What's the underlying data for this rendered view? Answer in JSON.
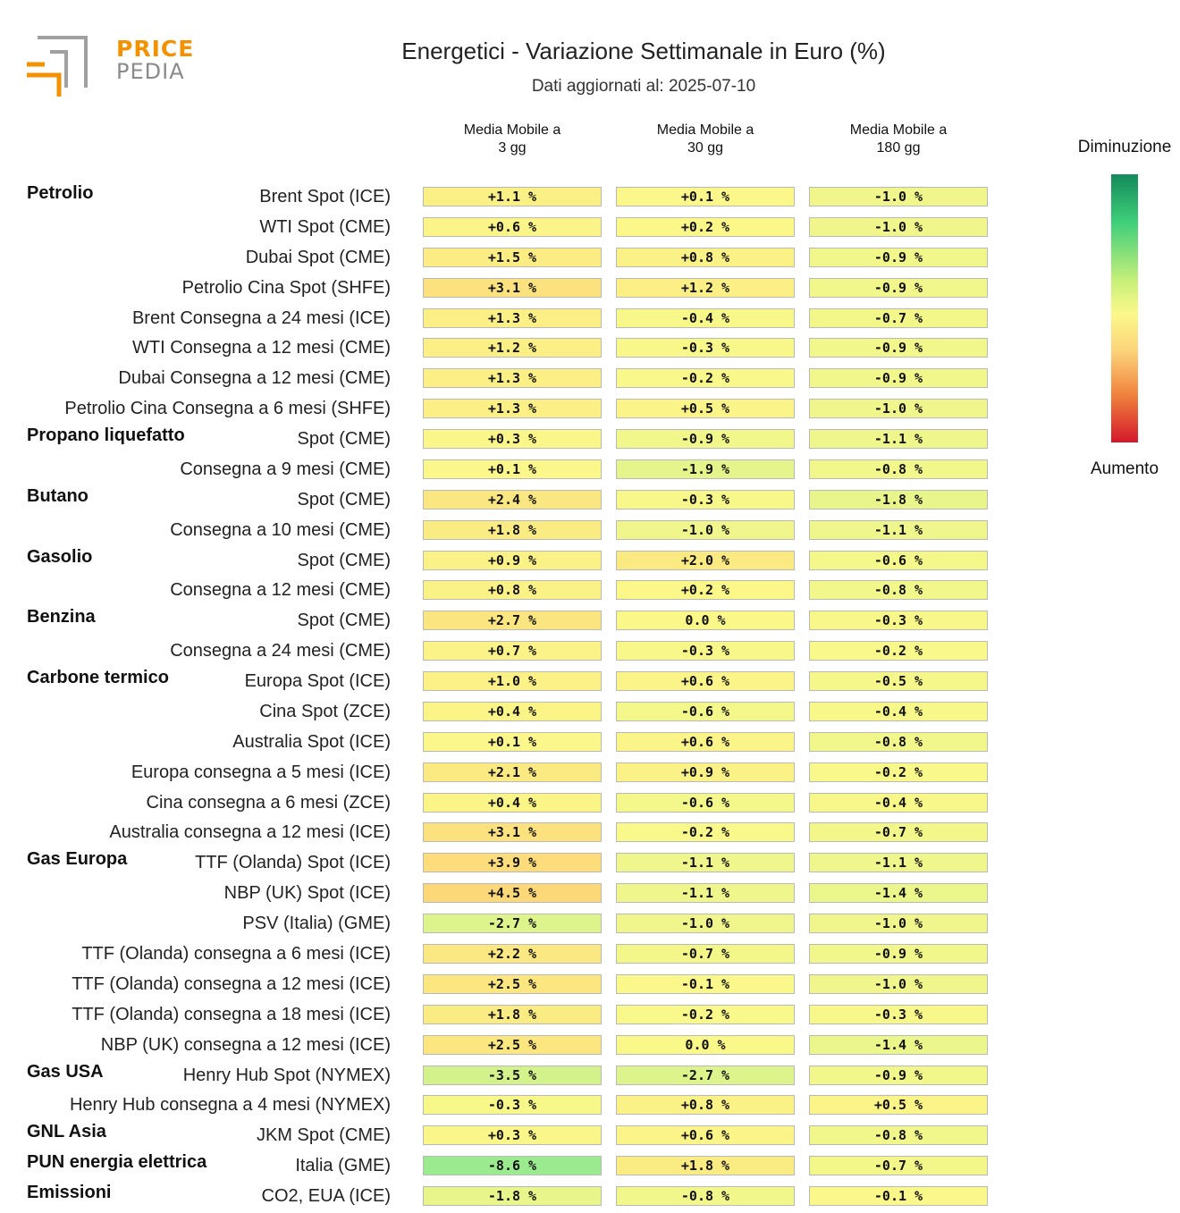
{
  "logo": {
    "line1": "PRICE",
    "line2": "PEDIA"
  },
  "title": "Energetici - Variazione Settimanale in Euro (%)",
  "subtitle": "Dati aggiornati al: 2025-07-10",
  "legend": {
    "top": "Diminuzione",
    "bottom": "Aumento"
  },
  "colors": {
    "decrease": "#1a9a62",
    "neutral": "#fbf88a",
    "increase": "#d4182a",
    "brand_orange": "#f39200",
    "brand_gray": "#8a8a8a"
  },
  "chart_data": {
    "type": "heatmap",
    "title": "Energetici - Variazione Settimanale in Euro (%)",
    "columns": [
      "Media Mobile a\n3 gg",
      "Media Mobile a\n30 gg",
      "Media Mobile a\n180 gg"
    ],
    "unit": "%",
    "rows": [
      {
        "group": "Petrolio",
        "label": "Brent Spot (ICE)",
        "values": [
          1.1,
          0.1,
          -1.0
        ],
        "text": [
          "+1.1 %",
          "+0.1 %",
          "-1.0 %"
        ]
      },
      {
        "group": "",
        "label": "WTI Spot (CME)",
        "values": [
          0.6,
          0.2,
          -1.0
        ],
        "text": [
          "+0.6 %",
          "+0.2 %",
          "-1.0 %"
        ]
      },
      {
        "group": "",
        "label": "Dubai Spot (CME)",
        "values": [
          1.5,
          0.8,
          -0.9
        ],
        "text": [
          "+1.5 %",
          "+0.8 %",
          "-0.9 %"
        ]
      },
      {
        "group": "",
        "label": "Petrolio Cina Spot (SHFE)",
        "values": [
          3.1,
          1.2,
          -0.9
        ],
        "text": [
          "+3.1 %",
          "+1.2 %",
          "-0.9 %"
        ]
      },
      {
        "group": "",
        "label": "Brent Consegna a 24 mesi (ICE)",
        "values": [
          1.3,
          -0.4,
          -0.7
        ],
        "text": [
          "+1.3 %",
          "-0.4 %",
          "-0.7 %"
        ]
      },
      {
        "group": "",
        "label": "WTI Consegna a 12 mesi (CME)",
        "values": [
          1.2,
          -0.3,
          -0.9
        ],
        "text": [
          "+1.2 %",
          "-0.3 %",
          "-0.9 %"
        ]
      },
      {
        "group": "",
        "label": "Dubai Consegna a 12 mesi (CME)",
        "values": [
          1.3,
          -0.2,
          -0.9
        ],
        "text": [
          "+1.3 %",
          "-0.2 %",
          "-0.9 %"
        ]
      },
      {
        "group": "",
        "label": "Petrolio Cina Consegna a 6 mesi (SHFE)",
        "values": [
          1.3,
          0.5,
          -1.0
        ],
        "text": [
          "+1.3 %",
          "+0.5 %",
          "-1.0 %"
        ]
      },
      {
        "group": "Propano liquefatto",
        "label": "Spot (CME)",
        "values": [
          0.3,
          -0.9,
          -1.1
        ],
        "text": [
          "+0.3 %",
          "-0.9 %",
          "-1.1 %"
        ]
      },
      {
        "group": "",
        "label": "Consegna a 9 mesi (CME)",
        "values": [
          0.1,
          -1.9,
          -0.8
        ],
        "text": [
          "+0.1 %",
          "-1.9 %",
          "-0.8 %"
        ]
      },
      {
        "group": "Butano",
        "label": "Spot (CME)",
        "values": [
          2.4,
          -0.3,
          -1.8
        ],
        "text": [
          "+2.4 %",
          "-0.3 %",
          "-1.8 %"
        ]
      },
      {
        "group": "",
        "label": "Consegna a 10 mesi (CME)",
        "values": [
          1.8,
          -1.0,
          -1.1
        ],
        "text": [
          "+1.8 %",
          "-1.0 %",
          "-1.1 %"
        ]
      },
      {
        "group": "Gasolio",
        "label": "Spot (CME)",
        "values": [
          0.9,
          2.0,
          -0.6
        ],
        "text": [
          "+0.9 %",
          "+2.0 %",
          "-0.6 %"
        ]
      },
      {
        "group": "",
        "label": "Consegna a 12 mesi (CME)",
        "values": [
          0.8,
          0.2,
          -0.8
        ],
        "text": [
          "+0.8 %",
          "+0.2 %",
          "-0.8 %"
        ]
      },
      {
        "group": "Benzina",
        "label": "Spot (CME)",
        "values": [
          2.7,
          0.0,
          -0.3
        ],
        "text": [
          "+2.7 %",
          "0.0 %",
          "-0.3 %"
        ]
      },
      {
        "group": "",
        "label": "Consegna a 24 mesi (CME)",
        "values": [
          0.7,
          -0.3,
          -0.2
        ],
        "text": [
          "+0.7 %",
          "-0.3 %",
          "-0.2 %"
        ]
      },
      {
        "group": "Carbone termico",
        "label": "Europa Spot (ICE)",
        "values": [
          1.0,
          0.6,
          -0.5
        ],
        "text": [
          "+1.0 %",
          "+0.6 %",
          "-0.5 %"
        ]
      },
      {
        "group": "",
        "label": "Cina Spot (ZCE)",
        "values": [
          0.4,
          -0.6,
          -0.4
        ],
        "text": [
          "+0.4 %",
          "-0.6 %",
          "-0.4 %"
        ]
      },
      {
        "group": "",
        "label": "Australia Spot (ICE)",
        "values": [
          0.1,
          0.6,
          -0.8
        ],
        "text": [
          "+0.1 %",
          "+0.6 %",
          "-0.8 %"
        ]
      },
      {
        "group": "",
        "label": "Europa consegna a 5 mesi (ICE)",
        "values": [
          2.1,
          0.9,
          -0.2
        ],
        "text": [
          "+2.1 %",
          "+0.9 %",
          "-0.2 %"
        ]
      },
      {
        "group": "",
        "label": "Cina consegna a 6 mesi (ZCE)",
        "values": [
          0.4,
          -0.6,
          -0.4
        ],
        "text": [
          "+0.4 %",
          "-0.6 %",
          "-0.4 %"
        ]
      },
      {
        "group": "",
        "label": "Australia consegna a 12 mesi (ICE)",
        "values": [
          3.1,
          -0.2,
          -0.7
        ],
        "text": [
          "+3.1 %",
          "-0.2 %",
          "-0.7 %"
        ]
      },
      {
        "group": "Gas Europa",
        "label": "TTF (Olanda) Spot (ICE)",
        "values": [
          3.9,
          -1.1,
          -1.1
        ],
        "text": [
          "+3.9 %",
          "-1.1 %",
          "-1.1 %"
        ]
      },
      {
        "group": "",
        "label": "NBP (UK) Spot (ICE)",
        "values": [
          4.5,
          -1.1,
          -1.4
        ],
        "text": [
          "+4.5 %",
          "-1.1 %",
          "-1.4 %"
        ]
      },
      {
        "group": "",
        "label": "PSV (Italia) (GME)",
        "values": [
          -2.7,
          -1.0,
          -1.0
        ],
        "text": [
          "-2.7 %",
          "-1.0 %",
          "-1.0 %"
        ]
      },
      {
        "group": "",
        "label": "TTF (Olanda) consegna a 6 mesi (ICE)",
        "values": [
          2.2,
          -0.7,
          -0.9
        ],
        "text": [
          "+2.2 %",
          "-0.7 %",
          "-0.9 %"
        ]
      },
      {
        "group": "",
        "label": "TTF (Olanda) consegna a 12 mesi (ICE)",
        "values": [
          2.5,
          -0.1,
          -1.0
        ],
        "text": [
          "+2.5 %",
          "-0.1 %",
          "-1.0 %"
        ]
      },
      {
        "group": "",
        "label": "TTF (Olanda) consegna a 18 mesi (ICE)",
        "values": [
          1.8,
          -0.2,
          -0.3
        ],
        "text": [
          "+1.8 %",
          "-0.2 %",
          "-0.3 %"
        ]
      },
      {
        "group": "",
        "label": "NBP (UK) consegna a 12 mesi (ICE)",
        "values": [
          2.5,
          0.0,
          -1.4
        ],
        "text": [
          "+2.5 %",
          "0.0 %",
          "-1.4 %"
        ]
      },
      {
        "group": "Gas USA",
        "label": "Henry Hub Spot (NYMEX)",
        "values": [
          -3.5,
          -2.7,
          -0.9
        ],
        "text": [
          "-3.5 %",
          "-2.7 %",
          "-0.9 %"
        ]
      },
      {
        "group": "",
        "label": "Henry Hub consegna a 4 mesi (NYMEX)",
        "values": [
          -0.3,
          0.8,
          0.5
        ],
        "text": [
          "-0.3 %",
          "+0.8 %",
          "+0.5 %"
        ]
      },
      {
        "group": "GNL Asia",
        "label": "JKM Spot (CME)",
        "values": [
          0.3,
          0.6,
          -0.8
        ],
        "text": [
          "+0.3 %",
          "+0.6 %",
          "-0.8 %"
        ]
      },
      {
        "group": "PUN energia elettrica",
        "label": "Italia (GME)",
        "values": [
          -8.6,
          1.8,
          -0.7
        ],
        "text": [
          "-8.6 %",
          "+1.8 %",
          "-0.7 %"
        ]
      },
      {
        "group": "Emissioni",
        "label": "CO2, EUA (ICE)",
        "values": [
          -1.8,
          -0.8,
          -0.1
        ],
        "text": [
          "-1.8 %",
          "-0.8 %",
          "-0.1 %"
        ]
      }
    ]
  }
}
